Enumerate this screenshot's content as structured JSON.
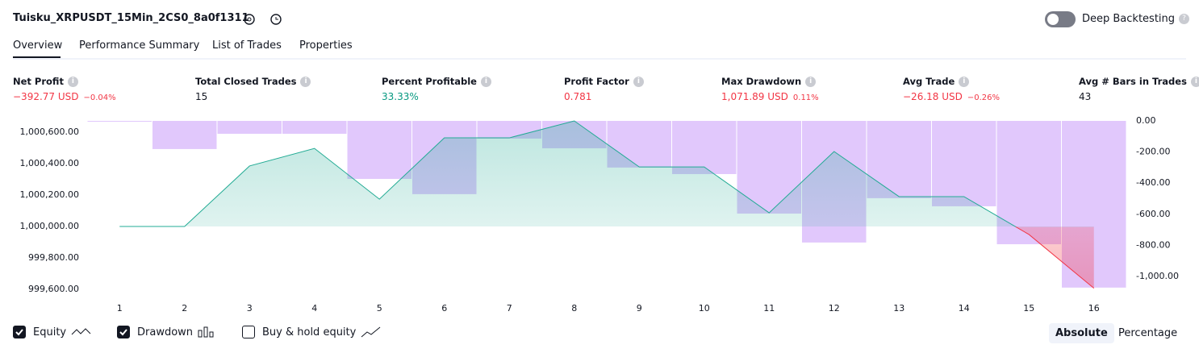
{
  "header": {
    "title": "Tuisku_XRPUSDT_15Min_2CS0_8a0f1311",
    "toggle_label": "Deep Backtesting"
  },
  "tabs": [
    "Overview",
    "Performance Summary",
    "List of Trades",
    "Properties"
  ],
  "metrics": [
    {
      "label": "Net Profit",
      "value": "−392.77 USD",
      "change": "−0.04%"
    },
    {
      "label": "Total Closed Trades",
      "value": "15"
    },
    {
      "label": "Percent Profitable",
      "value": "33.33%"
    },
    {
      "label": "Profit Factor",
      "value": "0.781"
    },
    {
      "label": "Max Drawdown",
      "value": "1,071.89 USD",
      "change": "0.11%"
    },
    {
      "label": "Avg Trade",
      "value": "−26.18 USD",
      "change": "−0.26%"
    },
    {
      "label": "Avg # Bars in Trades",
      "value": "43"
    }
  ],
  "chart_data": {
    "type": "line",
    "x": [
      1,
      2,
      3,
      4,
      5,
      6,
      7,
      8,
      9,
      10,
      11,
      12,
      13,
      14,
      15,
      16
    ],
    "xlim": [
      0.5,
      16.5
    ],
    "series": [
      {
        "name": "Equity",
        "color": "#22ab94",
        "below_color": "#f23645",
        "values": [
          1000000,
          1000000,
          1000385,
          1000497,
          1000174,
          1000564,
          1000564,
          1000672,
          1000379,
          1000379,
          1000087,
          1000477,
          1000190,
          1000190,
          999949,
          999607
        ]
      },
      {
        "name": "Drawdown",
        "type": "bar",
        "axis": "y2",
        "color": "#dcbefb",
        "values": [
          0,
          -181,
          -83,
          -83,
          -373,
          -471,
          -114,
          -176,
          -300,
          -342,
          -596,
          -782,
          -497,
          -549,
          -793,
          -1071.89
        ]
      }
    ],
    "ylim": [
      999600,
      1000672
    ],
    "yticks": [
      {
        "value": 999600,
        "label": "999,600.00"
      },
      {
        "value": 999800,
        "label": "999,800.00"
      },
      {
        "value": 1000000,
        "label": "1,000,000.00"
      },
      {
        "value": 1000200,
        "label": "1,000,200.00"
      },
      {
        "value": 1000400,
        "label": "1,000,400.00"
      },
      {
        "value": 1000600,
        "label": "1,000,600.00"
      }
    ],
    "y2lim": [
      -1083,
      0
    ],
    "y2ticks": [
      {
        "value": -1000,
        "label": "-1,000.00"
      },
      {
        "value": -800,
        "label": "-800.00"
      },
      {
        "value": -600,
        "label": "-600.00"
      },
      {
        "value": -400,
        "label": "-400.00"
      },
      {
        "value": -200,
        "label": "-200.00"
      },
      {
        "value": 0,
        "label": "0.00"
      }
    ]
  },
  "legend": {
    "items": [
      {
        "label": "Equity",
        "checked": true
      },
      {
        "label": "Drawdown",
        "checked": true
      },
      {
        "label": "Buy & hold equity",
        "checked": false
      }
    ],
    "modes": [
      "Absolute",
      "Percentage"
    ],
    "active_mode": "Absolute"
  }
}
